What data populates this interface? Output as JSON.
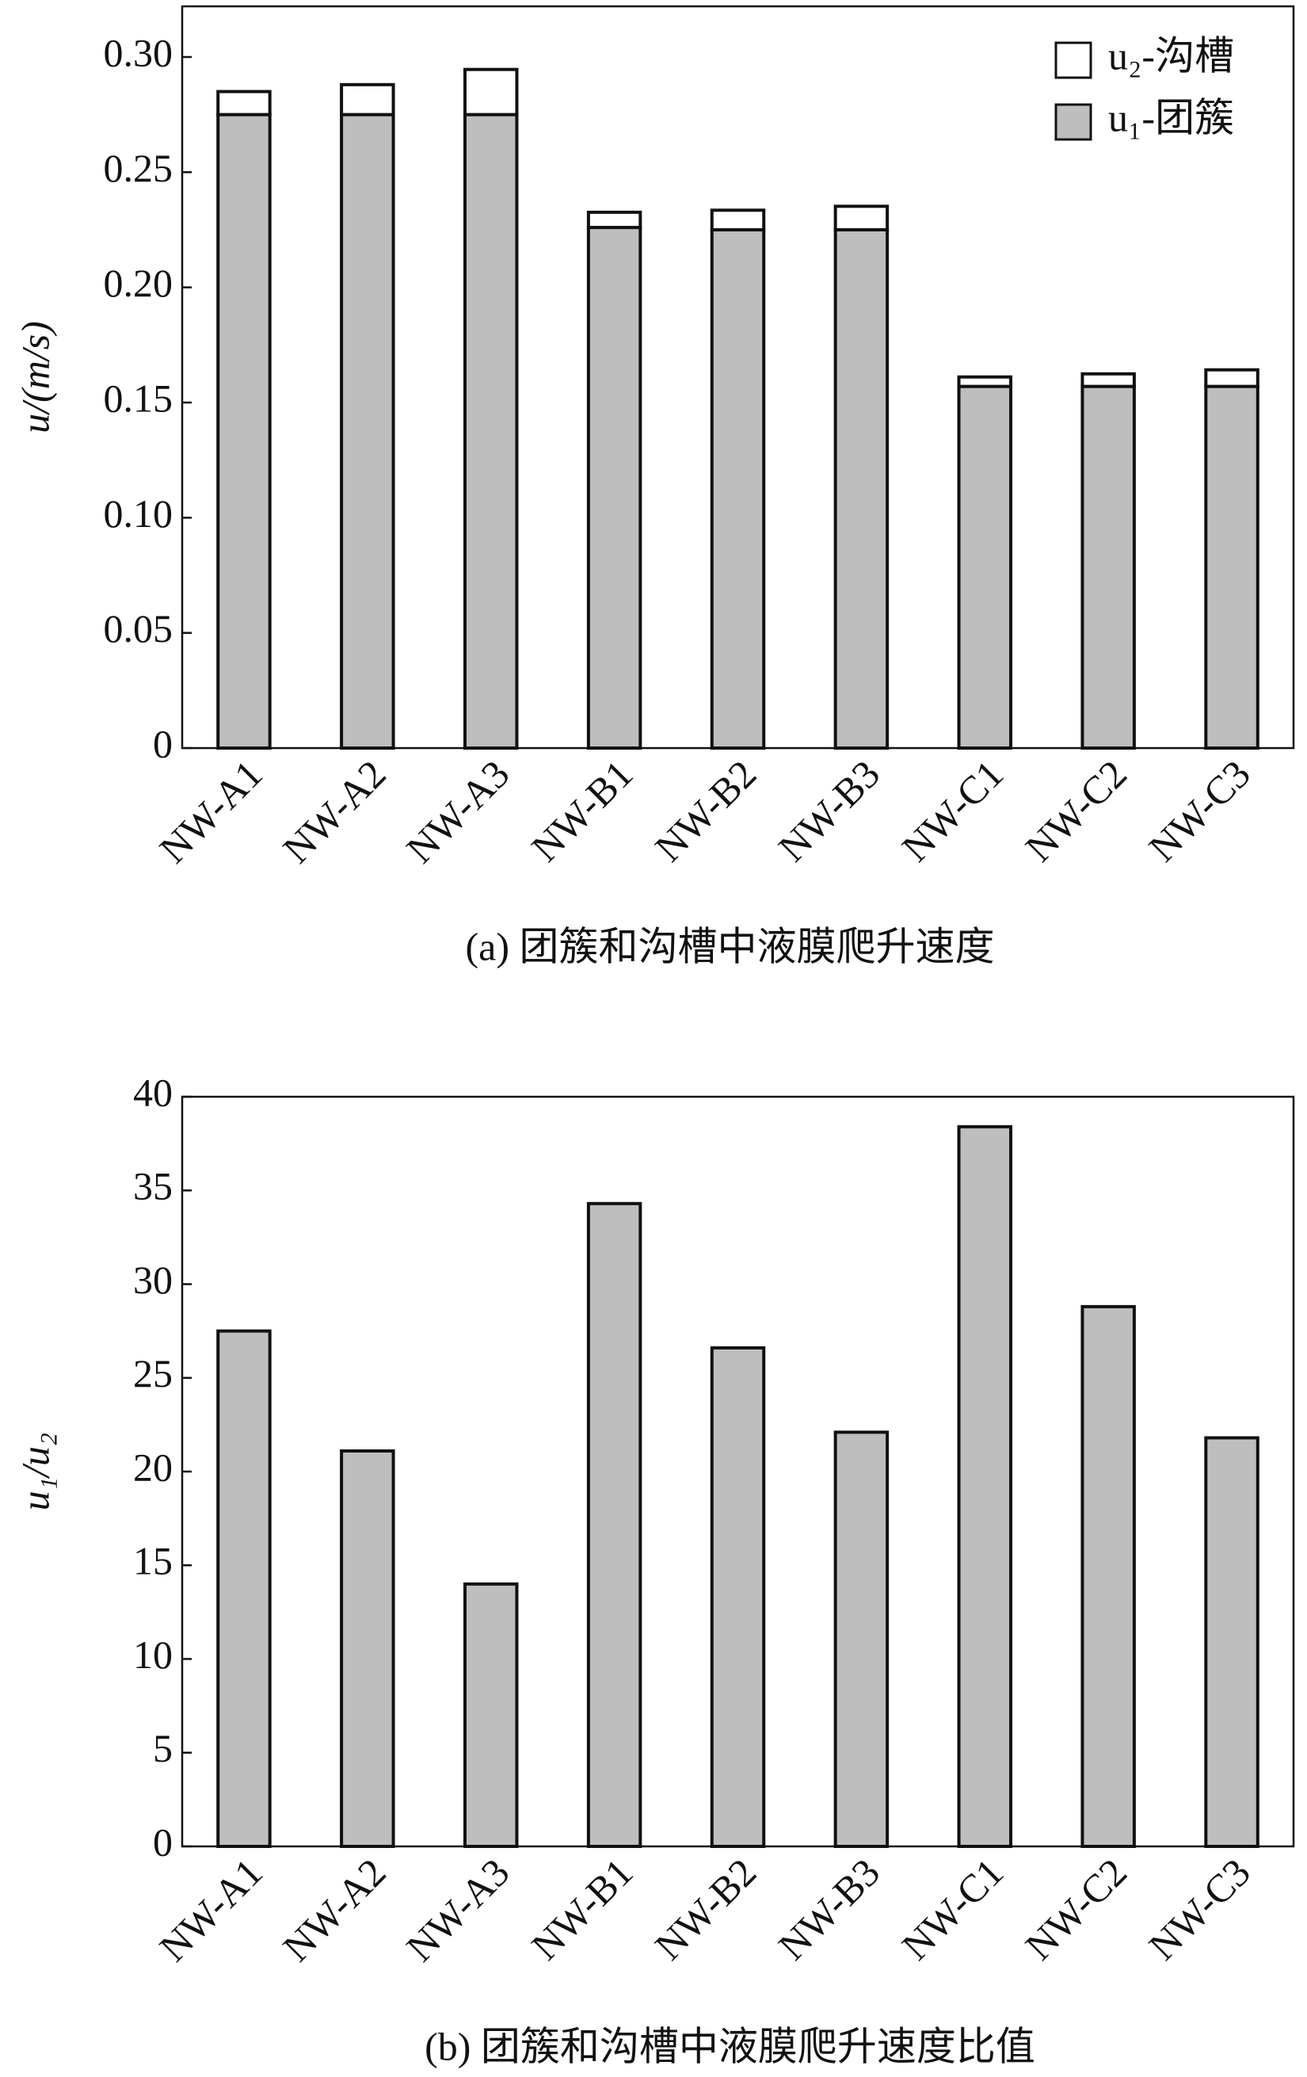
{
  "chart_data": [
    {
      "type": "stacked_bar",
      "ylabel": "u/(m/s)",
      "caption": "(a) 团簇和沟槽中液膜爬升速度",
      "categories": [
        "NW-A1",
        "NW-A2",
        "NW-A3",
        "NW-B1",
        "NW-B2",
        "NW-B3",
        "NW-C1",
        "NW-C2",
        "NW-C3"
      ],
      "series": [
        {
          "name": "u₁-团簇",
          "color": "#bebebe",
          "values": [
            0.275,
            0.275,
            0.275,
            0.226,
            0.225,
            0.225,
            0.157,
            0.157,
            0.157
          ]
        },
        {
          "name": "u₂-沟槽",
          "color": "#ffffff",
          "values": [
            0.01,
            0.013,
            0.0196,
            0.0066,
            0.0085,
            0.0102,
            0.0041,
            0.00545,
            0.0072
          ]
        }
      ],
      "ylim": [
        0,
        0.322
      ],
      "yticks": [
        0,
        0.05,
        {
          "value": 0.1,
          "label": "0.10"
        },
        0.15,
        {
          "value": 0.2,
          "label": "0.20"
        },
        0.25,
        {
          "value": 0.3,
          "label": "0.30"
        }
      ],
      "legend": "upper right"
    },
    {
      "type": "bar",
      "ylabel": "u₁/u₂",
      "caption": "(b) 团簇和沟槽中液膜爬升速度比值",
      "categories": [
        "NW-A1",
        "NW-A2",
        "NW-A3",
        "NW-B1",
        "NW-B2",
        "NW-B3",
        "NW-C1",
        "NW-C2",
        "NW-C3"
      ],
      "values": [
        27.5,
        21.1,
        14.0,
        34.3,
        26.6,
        22.1,
        38.4,
        28.8,
        21.8
      ],
      "color": "#bebebe",
      "ylim": [
        0,
        40
      ],
      "yticks": [
        0,
        5,
        10,
        15,
        20,
        25,
        30,
        35,
        40
      ]
    }
  ]
}
